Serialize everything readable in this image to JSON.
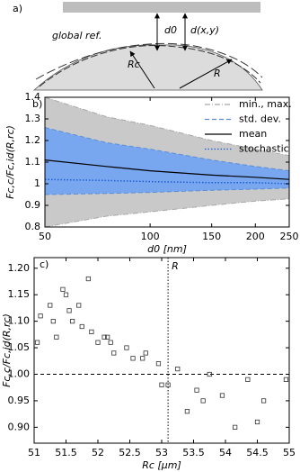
{
  "diagram": {
    "panel_label": "a)",
    "reference_label": "global ref.",
    "d0_label": "d0",
    "dxy_label": "d(x,y)",
    "rc_label": "Rc",
    "r_label": "R"
  },
  "chart_data": [
    {
      "type": "line",
      "panel_label": "b)",
      "x_label": "d0 [nm]",
      "y_label": "Fc,c/Fc,id(R,rc)",
      "xlog": true,
      "xlim": [
        50,
        250
      ],
      "ylim": [
        0.8,
        1.4
      ],
      "xticks": [
        50,
        100,
        150,
        200,
        250
      ],
      "yticks": [
        0.8,
        0.9,
        1,
        1.1,
        1.2,
        1.3,
        1.4
      ],
      "x": [
        50,
        75,
        100,
        150,
        200,
        250
      ],
      "series": [
        {
          "name": "min., max.",
          "style": "band",
          "color": "#c9c9c9",
          "edge_color": "#a8a8a8",
          "upper": [
            1.4,
            1.31,
            1.27,
            1.2,
            1.16,
            1.13
          ],
          "lower": [
            0.8,
            0.85,
            0.87,
            0.9,
            0.92,
            0.93
          ]
        },
        {
          "name": "std. dev.",
          "style": "band",
          "color": "#78a6ef",
          "edge_color": "#5a8ed8",
          "upper": [
            1.26,
            1.19,
            1.16,
            1.11,
            1.08,
            1.06
          ],
          "lower": [
            0.95,
            0.955,
            0.96,
            0.97,
            0.975,
            0.98
          ]
        },
        {
          "name": "mean",
          "style": "solid",
          "color": "#000000",
          "values": [
            1.11,
            1.08,
            1.06,
            1.04,
            1.03,
            1.02
          ]
        },
        {
          "name": "stochastic",
          "style": "dotted",
          "color": "#1f5fd6",
          "values": [
            1.02,
            1.015,
            1.01,
            1.005,
            1.005,
            1.0
          ]
        }
      ]
    },
    {
      "type": "scatter",
      "panel_label": "c)",
      "x_label": "Rc [µm]",
      "y_label": "Fc,c/Fc,id(R,rc)",
      "xlim": [
        51,
        55
      ],
      "ylim": [
        0.87,
        1.22
      ],
      "xticks": [
        51,
        51.5,
        52,
        52.5,
        53,
        53.5,
        54,
        54.5,
        55
      ],
      "yticks": [
        {
          "value": 0.9,
          "label": "0.90"
        },
        {
          "value": 0.95,
          "label": "0.95"
        },
        {
          "value": 1,
          "label": "1.00"
        },
        {
          "value": 1.05,
          "label": "1.05"
        },
        {
          "value": 1.1,
          "label": "1.10"
        },
        {
          "value": 1.15,
          "label": "1.15"
        },
        {
          "value": 1.2,
          "label": "1.20"
        }
      ],
      "hline": 1,
      "vline": 53.1,
      "vline_label": "R",
      "color": "#333333",
      "x": [
        51.05,
        51.1,
        51.25,
        51.3,
        51.35,
        51.45,
        51.5,
        51.55,
        51.6,
        51.7,
        51.75,
        51.85,
        51.9,
        52.0,
        52.1,
        52.15,
        52.2,
        52.25,
        52.45,
        52.55,
        52.7,
        52.75,
        52.95,
        53.0,
        53.1,
        53.25,
        53.4,
        53.55,
        53.65,
        53.75,
        53.95,
        54.15,
        54.35,
        54.5,
        54.6,
        54.95
      ],
      "values": [
        1.06,
        1.11,
        1.13,
        1.1,
        1.07,
        1.16,
        1.15,
        1.12,
        1.1,
        1.13,
        1.09,
        1.18,
        1.08,
        1.06,
        1.07,
        1.07,
        1.06,
        1.04,
        1.05,
        1.03,
        1.03,
        1.04,
        1.02,
        0.98,
        0.98,
        1.01,
        0.93,
        0.97,
        0.95,
        1.0,
        0.96,
        0.9,
        0.99,
        0.91,
        0.95,
        0.99
      ]
    }
  ]
}
